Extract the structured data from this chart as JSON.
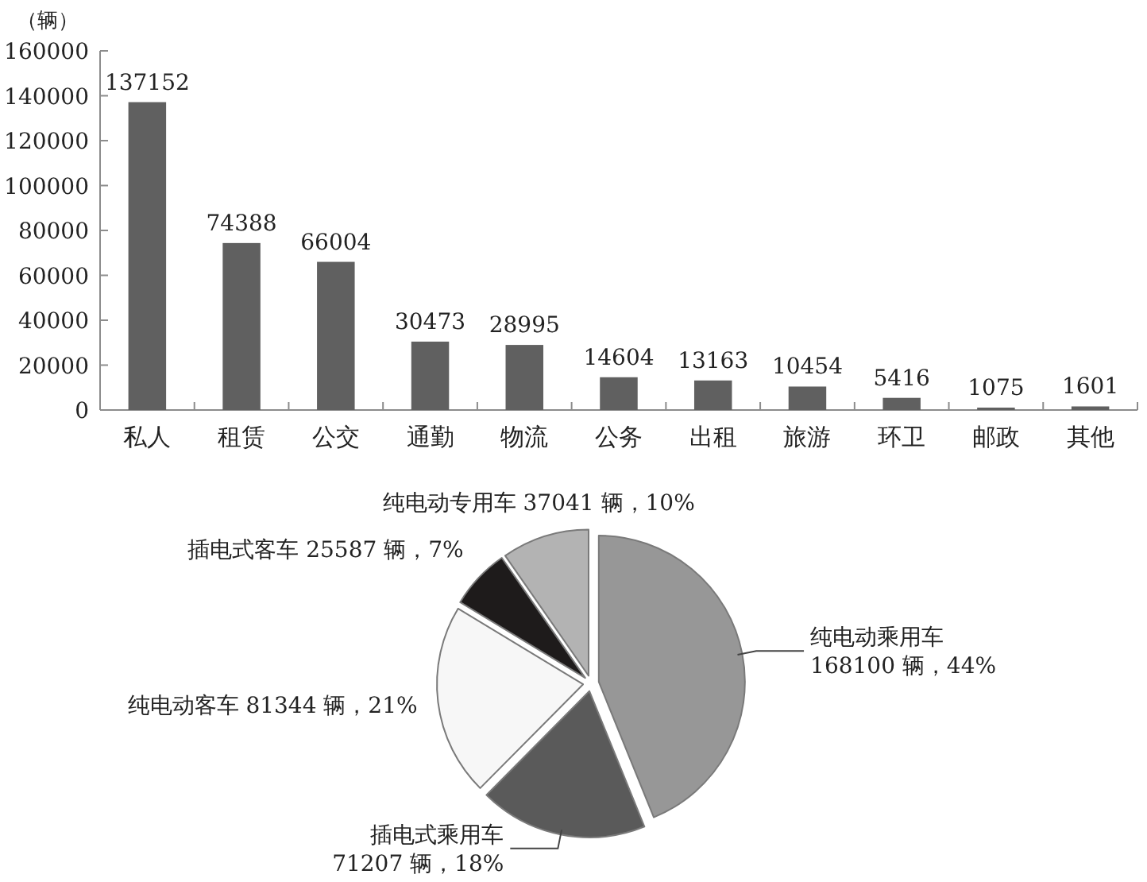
{
  "chart_data": [
    {
      "type": "bar",
      "ylabel": "（辆）",
      "categories": [
        "私人",
        "租赁",
        "公交",
        "通勤",
        "物流",
        "公务",
        "出租",
        "旅游",
        "环卫",
        "邮政",
        "其他"
      ],
      "values": [
        137152,
        74388,
        66004,
        30473,
        28995,
        14604,
        13163,
        10454,
        5416,
        1075,
        1601
      ],
      "color": "#606060",
      "ylim": [
        0,
        160000
      ],
      "yticks": [
        0,
        20000,
        40000,
        60000,
        80000,
        100000,
        120000,
        140000,
        160000
      ],
      "data_labels": true
    },
    {
      "type": "pie",
      "categories": [
        "纯电动乘用车",
        "插电式乘用车",
        "纯电动客车",
        "插电式客车",
        "纯电动专用车"
      ],
      "values": [
        168100,
        71207,
        81344,
        25587,
        37041
      ],
      "value_labels": [
        "168100 辆，44%",
        "71207 辆，18%",
        "81344 辆，21%",
        "25587 辆，7%",
        "37041 辆，10%"
      ],
      "colors": [
        "#979797",
        "#5a5a5a",
        "#f7f7f7",
        "#1e1b1b",
        "#b3b3b3"
      ]
    }
  ]
}
